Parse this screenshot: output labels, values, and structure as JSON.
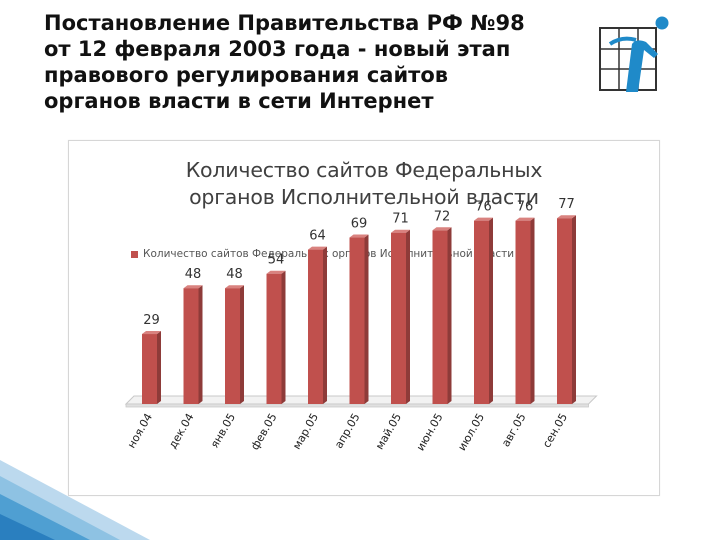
{
  "slide": {
    "title_lines": [
      "Постановление Правительства РФ №98",
      "от 12 февраля 2003 года  - новый этап",
      "правового регулирования сайтов",
      "органов власти в сети Интернет"
    ]
  },
  "colors": {
    "bar_front": "#c0504d",
    "bar_side": "#8e3b39",
    "bar_top": "#d9827f",
    "logo_blue": "#1f8ac9"
  },
  "chart_data": {
    "type": "bar",
    "title_lines": [
      "Количество сайтов Федеральных",
      "органов Исполнительной власти"
    ],
    "legend_position": "top-left",
    "grid": false,
    "categories": [
      "ноя.04",
      "дек.04",
      "янв.05",
      "фев.05",
      "мар.05",
      "апр.05",
      "май.05",
      "июн.05",
      "июл.05",
      "авг.05",
      "сен.05"
    ],
    "series": [
      {
        "name": "Количество сайтов Федеральных органов Исполнительной власти",
        "values": [
          29,
          48,
          48,
          54,
          64,
          69,
          71,
          72,
          76,
          76,
          77
        ]
      }
    ],
    "ylim": [
      0,
      80
    ]
  }
}
